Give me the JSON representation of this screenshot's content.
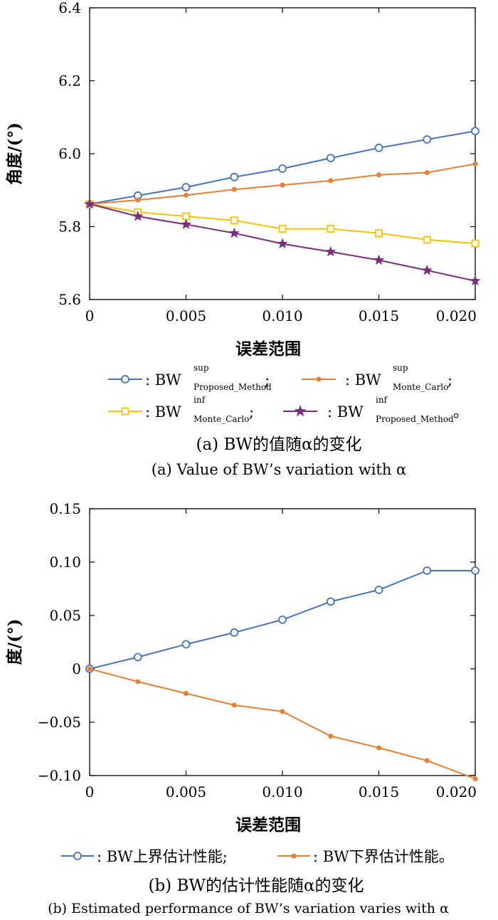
{
  "chart_data": [
    {
      "type": "line",
      "ylabel": "角度/(°)",
      "xlabel": "误差范围",
      "xlim": [
        0,
        0.02
      ],
      "ylim": [
        5.6,
        6.4
      ],
      "x": [
        0,
        0.0025,
        0.005,
        0.0075,
        0.01,
        0.0125,
        0.015,
        0.0175,
        0.02
      ],
      "xticks": [
        "0",
        "0.005",
        "0.010",
        "0.015",
        "0.020"
      ],
      "yticks": [
        "5.6",
        "5.8",
        "6.0",
        "6.2",
        "6.4"
      ],
      "grid": false,
      "legend_position": "bottom",
      "series": [
        {
          "name": "Proposed_Method sup",
          "color": "#4472C4",
          "marker": "circle",
          "values": [
            5.862,
            5.885,
            5.908,
            5.936,
            5.959,
            5.988,
            6.016,
            6.039,
            6.062
          ]
        },
        {
          "name": "Monte_Carlo sup",
          "color": "#ED7D31",
          "marker": "dot",
          "values": [
            5.862,
            5.873,
            5.886,
            5.902,
            5.914,
            5.926,
            5.942,
            5.948,
            5.972
          ]
        },
        {
          "name": "Monte_Carlo inf",
          "color": "#FFC000",
          "marker": "square",
          "values": [
            5.862,
            5.84,
            5.828,
            5.817,
            5.794,
            5.794,
            5.782,
            5.764,
            5.754
          ]
        },
        {
          "name": "Proposed_Method inf",
          "color": "#7B2C7E",
          "marker": "star",
          "values": [
            5.862,
            5.828,
            5.806,
            5.782,
            5.753,
            5.731,
            5.708,
            5.68,
            5.651
          ]
        }
      ],
      "caption_cn": "(a) BW的值随α的变化",
      "caption_en": "(a) Value of BW’s variation with α"
    },
    {
      "type": "line",
      "ylabel": "度/(°)",
      "xlabel": "误差范围",
      "xlim": [
        0,
        0.02
      ],
      "ylim": [
        -0.1,
        0.15
      ],
      "x": [
        0,
        0.0025,
        0.005,
        0.0075,
        0.01,
        0.0125,
        0.015,
        0.0175,
        0.02
      ],
      "xticks": [
        "0",
        "0.005",
        "0.010",
        "0.015",
        "0.020"
      ],
      "yticks": [
        "−0.10",
        "−0.05",
        "0",
        "0.05",
        "0.10",
        "0.15"
      ],
      "grid": false,
      "legend_position": "bottom",
      "series": [
        {
          "name": "BW上界估计性能",
          "color": "#4472C4",
          "marker": "circle",
          "values": [
            0,
            0.011,
            0.023,
            0.034,
            0.046,
            0.063,
            0.074,
            0.092,
            0.092
          ]
        },
        {
          "name": "BW下界估计性能",
          "color": "#ED7D31",
          "marker": "dot",
          "values": [
            0,
            -0.012,
            -0.023,
            -0.034,
            -0.04,
            -0.063,
            -0.074,
            -0.086,
            -0.103
          ]
        }
      ],
      "caption_cn": "(b) BW的估计性能随α的变化",
      "caption_en": "(b) Estimated performance of BW’s variation varies with α"
    }
  ],
  "legend_a": {
    "p1_main": ": BW",
    "p1_sup": "sup",
    "p1_sub": "Proposed_Method",
    "p1_tail": ";",
    "p2_main": ": BW",
    "p2_sup": "sup",
    "p2_sub": "Monte_Carlo",
    "p2_tail": ";",
    "p3_main": ": BW",
    "p3_sup": "inf",
    "p3_sub": "Monte_Carlo",
    "p3_tail": ";",
    "p4_main": ": BW",
    "p4_sup": "inf",
    "p4_sub": "Proposed_Method",
    "p4_tail": "。"
  },
  "legend_b": {
    "p1": ": BW上界估计性能;",
    "p2": ": BW下界估计性能。"
  }
}
